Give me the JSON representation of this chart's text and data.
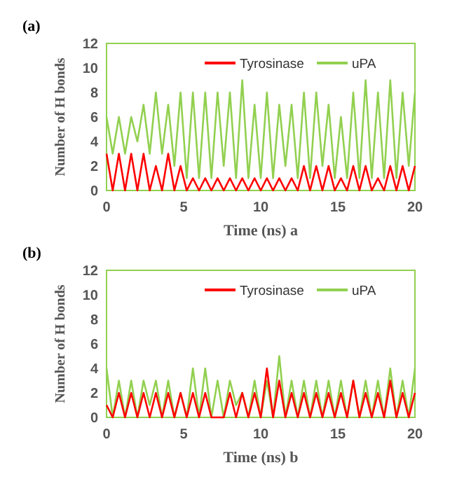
{
  "chart_data": [
    {
      "type": "line",
      "title": "(a)",
      "xlabel": "Time (ns) a",
      "ylabel": "Number of H bonds",
      "x": [
        0,
        0.4,
        0.8,
        1.2,
        1.6,
        2,
        2.4,
        2.8,
        3.2,
        3.6,
        4,
        4.4,
        4.8,
        5.2,
        5.6,
        6,
        6.4,
        6.8,
        7.2,
        7.6,
        8,
        8.4,
        8.8,
        9.2,
        9.6,
        10,
        10.4,
        10.8,
        11.2,
        11.6,
        12,
        12.4,
        12.8,
        13.2,
        13.6,
        14,
        14.4,
        14.8,
        15.2,
        15.6,
        16,
        16.4,
        16.8,
        17.2,
        17.6,
        18,
        18.4,
        18.8,
        19.2,
        19.6,
        20
      ],
      "xlim": [
        0,
        20
      ],
      "xticks": [
        0,
        5,
        10,
        15,
        20
      ],
      "ylim": [
        0,
        12
      ],
      "yticks": [
        0,
        2,
        4,
        6,
        8,
        10,
        12
      ],
      "legend": "top right",
      "line_style": "solid",
      "marker": "none",
      "series": [
        {
          "name": "Tyrosinase",
          "color": "#ff0000",
          "values": [
            3,
            0,
            3,
            0,
            3,
            0,
            3,
            0,
            2,
            0,
            3,
            0,
            2,
            0,
            1,
            0,
            1,
            0,
            1,
            0,
            1,
            0,
            1,
            0,
            1,
            0,
            1,
            0,
            1,
            0,
            1,
            0,
            2,
            0,
            2,
            0,
            2,
            0,
            1,
            0,
            2,
            0,
            2,
            0,
            1,
            0,
            2,
            0,
            2,
            0,
            2
          ]
        },
        {
          "name": "uPA",
          "color": "#92d050",
          "values": [
            6,
            3,
            6,
            3,
            6,
            4,
            7,
            3,
            8,
            3,
            7,
            2,
            8,
            1,
            8,
            1,
            8,
            1,
            8,
            2,
            8,
            1,
            9,
            1,
            7,
            1,
            8,
            1,
            7,
            2,
            7,
            1,
            8,
            1,
            8,
            2,
            7,
            1,
            6,
            1,
            8,
            1,
            9,
            1,
            8,
            1,
            9,
            1,
            8,
            2,
            8
          ]
        }
      ]
    },
    {
      "type": "line",
      "title": "(b)",
      "xlabel": "Time (ns) b",
      "ylabel": "Number of H bonds",
      "x": [
        0,
        0.4,
        0.8,
        1.2,
        1.6,
        2,
        2.4,
        2.8,
        3.2,
        3.6,
        4,
        4.4,
        4.8,
        5.2,
        5.6,
        6,
        6.4,
        6.8,
        7.2,
        7.6,
        8,
        8.4,
        8.8,
        9.2,
        9.6,
        10,
        10.4,
        10.8,
        11.2,
        11.6,
        12,
        12.4,
        12.8,
        13.2,
        13.6,
        14,
        14.4,
        14.8,
        15.2,
        15.6,
        16,
        16.4,
        16.8,
        17.2,
        17.6,
        18,
        18.4,
        18.8,
        19.2,
        19.6,
        20
      ],
      "xlim": [
        0,
        20
      ],
      "xticks": [
        0,
        5,
        10,
        15,
        20
      ],
      "ylim": [
        0,
        12
      ],
      "yticks": [
        0,
        2,
        4,
        6,
        8,
        10,
        12
      ],
      "legend": "top right",
      "line_style": "solid",
      "marker": "none",
      "series": [
        {
          "name": "Tyrosinase",
          "color": "#ff0000",
          "values": [
            1,
            0,
            2,
            0,
            2,
            0,
            2,
            0,
            2,
            0,
            2,
            0,
            2,
            0,
            2,
            0,
            2,
            0,
            0,
            0,
            2,
            0,
            2,
            0,
            2,
            0,
            4,
            0,
            3,
            0,
            2,
            0,
            2,
            0,
            2,
            0,
            2,
            0,
            2,
            0,
            3,
            0,
            2,
            0,
            2,
            0,
            3,
            0,
            2,
            0,
            2
          ]
        },
        {
          "name": "uPA",
          "color": "#92d050",
          "values": [
            4,
            0,
            3,
            0,
            3,
            0,
            3,
            1,
            3,
            0,
            3,
            0,
            2,
            0,
            4,
            0,
            4,
            0,
            3,
            0,
            3,
            1,
            2,
            0,
            3,
            0,
            3,
            0,
            5,
            0,
            3,
            0,
            3,
            0,
            3,
            0,
            3,
            0,
            3,
            0,
            3,
            0,
            3,
            0,
            3,
            0,
            4,
            0,
            3,
            0,
            4
          ]
        }
      ]
    }
  ]
}
